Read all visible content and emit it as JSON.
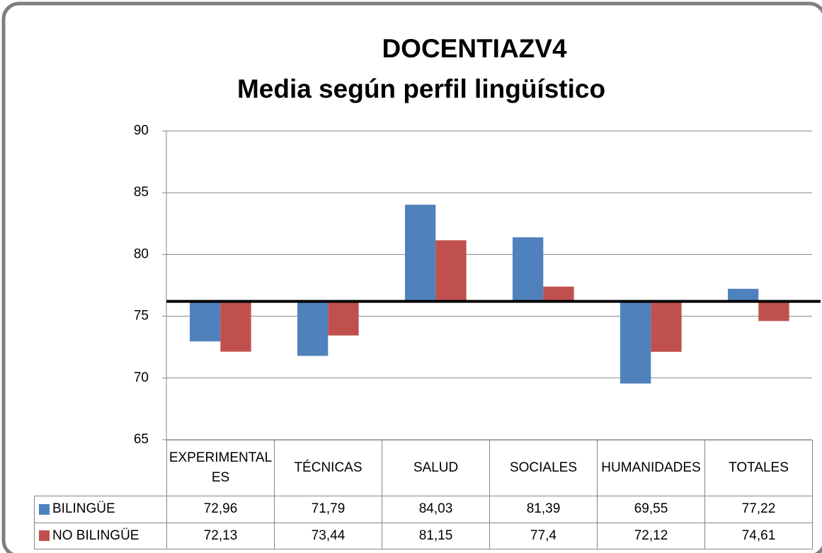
{
  "chart_data": {
    "type": "bar",
    "title": [
      "DOCENTIAZV4",
      "Media según perfil lingüístico"
    ],
    "categories": [
      "EXPERIMENTALES",
      "TÉCNICAS",
      "SALUD",
      "SOCIALES",
      "HUMANIDADES",
      "TOTALES"
    ],
    "series": [
      {
        "name": "BILINGÜE",
        "color": "#4f81bd",
        "values": [
          72.96,
          71.79,
          84.03,
          81.39,
          69.55,
          77.22
        ],
        "value_labels": [
          "72,96",
          "71,79",
          "84,03",
          "81,39",
          "69,55",
          "77,22"
        ]
      },
      {
        "name": "NO BILINGÜE",
        "color": "#c0504d",
        "values": [
          72.13,
          73.44,
          81.15,
          77.4,
          72.12,
          74.61
        ],
        "value_labels": [
          "72,13",
          "73,44",
          "81,15",
          "77,4",
          "72,12",
          "74,61"
        ]
      }
    ],
    "baseline": 76.2,
    "ylim": [
      65,
      90
    ],
    "yticks": [
      65,
      70,
      75,
      80,
      85,
      90
    ],
    "grid": true
  }
}
